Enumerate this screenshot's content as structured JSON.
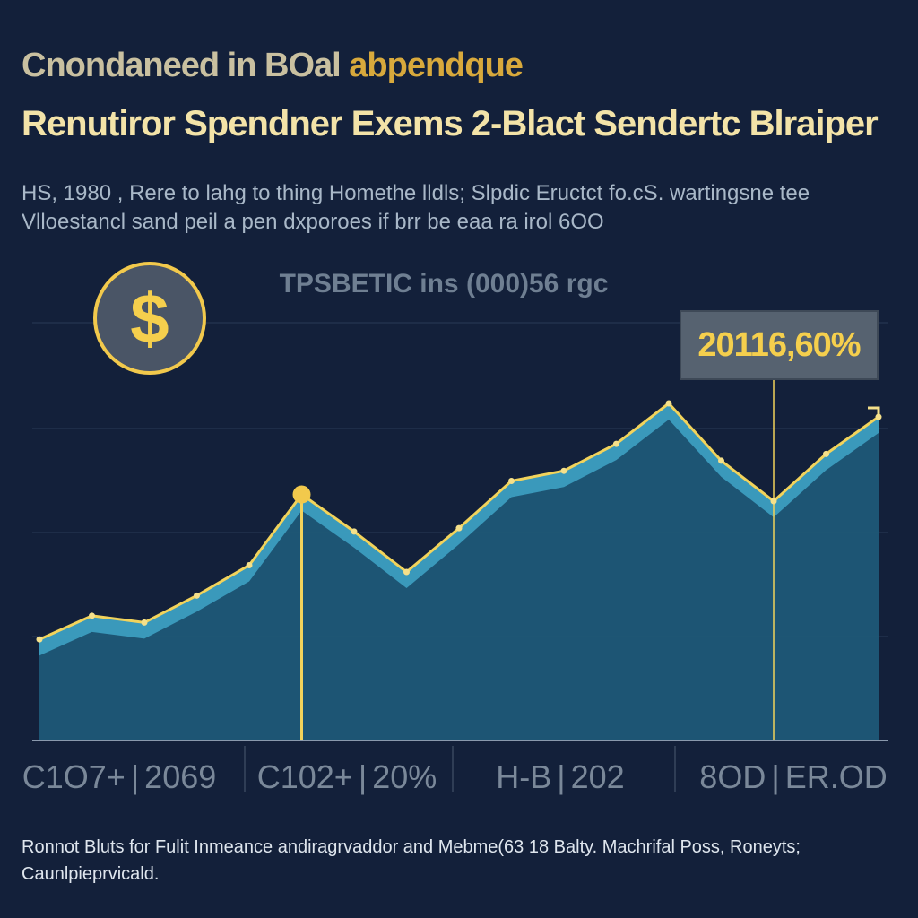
{
  "header": {
    "kicker_part1": "Cnondaneed in BOal",
    "kicker_part2": "abpendque",
    "headline": "Renutiror Spendner Exems 2-Blact Sendertc Blraiper",
    "description": "HS, 1980 , Rere to lahg to thing Homethe lldls; Slpdic Eructct fo.cS. wartingsne tee Vlloestancl sand peil a pen dxporoes if brr be eaa ra irol 6OO"
  },
  "chart_data": {
    "type": "area",
    "title": "TPSBETIC ins (000)56 rgc",
    "xlabel": "",
    "ylabel": "",
    "x_tick_labels": [
      {
        "left": "C1O7+",
        "right": "2069"
      },
      {
        "left": "C102+",
        "right": "20%"
      },
      {
        "left": "H-B",
        "right": "202"
      },
      {
        "left": "8OD",
        "right": "ER.OD"
      }
    ],
    "ylim": [
      0,
      100
    ],
    "grid": true,
    "series": [
      {
        "values": [
          30,
          37,
          35,
          43,
          52,
          73,
          62,
          50,
          63,
          77,
          80,
          88,
          100,
          83,
          71,
          85,
          96
        ]
      }
    ],
    "highlights": [
      {
        "index": 5,
        "marker": "vertical-line"
      },
      {
        "index": 14,
        "marker": "vertical-line"
      }
    ],
    "callout": {
      "text": "20116,60%",
      "index": 14
    },
    "colors": {
      "line": "#f2d35b",
      "area": "#1e5877",
      "band": "#3fa6c8",
      "background": "#13203a",
      "grid": "#2a3a55"
    }
  },
  "icons": {
    "dollar": "$"
  },
  "footnote": "Ronnot Bluts for Fulit Inmeance andiragrvaddor and Mebme(63 18 Balty. Machrifal Poss, Roneyts; Caunlpieprvicald."
}
